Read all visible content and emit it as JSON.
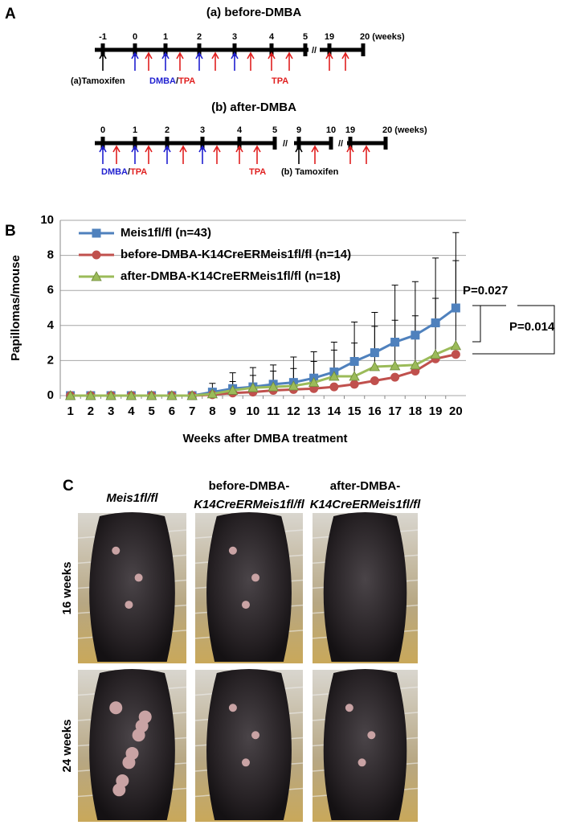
{
  "panel_a": {
    "label": "A",
    "before": {
      "title": "(a) before-DMBA",
      "ticks": [
        "-1",
        "0",
        "1",
        "2",
        "3",
        "4",
        "5",
        "19",
        "20 (weeks)"
      ],
      "tamoxifen": "(a)Tamoxifen",
      "dmba": "DMBA",
      "slash": "/",
      "tpa": "TPA",
      "tpa_late": "TPA"
    },
    "after": {
      "title": "(b) after-DMBA",
      "ticks": [
        "0",
        "1",
        "2",
        "3",
        "4",
        "5",
        "9",
        "10",
        "19",
        "20 (weeks)"
      ],
      "dmba": "DMBA",
      "slash": "/",
      "tpa": "TPA",
      "tpa_late": "TPA",
      "tamoxifen": "(b) Tamoxifen"
    }
  },
  "chart_data": {
    "type": "line",
    "panel_label": "B",
    "y_label": "Papillomas/mouse",
    "x_label": "Weeks after DMBA treatment",
    "categories": [
      "1",
      "2",
      "3",
      "4",
      "5",
      "6",
      "7",
      "8",
      "9",
      "10",
      "11",
      "12",
      "13",
      "14",
      "15",
      "16",
      "17",
      "18",
      "19",
      "20"
    ],
    "ylim": [
      0,
      10
    ],
    "yticks": [
      0,
      2,
      4,
      6,
      8,
      10
    ],
    "grid": true,
    "series": [
      {
        "name": "Meis1fl/fl (n=43)",
        "color": "#4f81bd",
        "marker": "square",
        "values": [
          0,
          0,
          0,
          0,
          0,
          0,
          0,
          0.2,
          0.4,
          0.5,
          0.65,
          0.75,
          1.0,
          1.35,
          1.95,
          2.45,
          3.05,
          3.45,
          4.15,
          5.0
        ],
        "errors": [
          null,
          null,
          null,
          null,
          null,
          null,
          null,
          0.5,
          0.9,
          1.1,
          1.1,
          1.45,
          1.5,
          1.7,
          2.25,
          2.3,
          3.25,
          3.05,
          3.7,
          4.3
        ]
      },
      {
        "name": "before-DMBA-K14CreERMeis1fl/fl (n=14)",
        "color": "#c0504d",
        "marker": "circle",
        "values": [
          0,
          0,
          0,
          0,
          0,
          0,
          0,
          0.05,
          0.15,
          0.2,
          0.3,
          0.35,
          0.4,
          0.5,
          0.65,
          0.85,
          1.05,
          1.4,
          2.1,
          2.35
        ]
      },
      {
        "name": "after-DMBA-K14CreERMeis1fl/fl (n=18)",
        "color": "#9bbb59",
        "marker": "triangle",
        "values": [
          0,
          0,
          0,
          0,
          0,
          0,
          0,
          0.1,
          0.3,
          0.45,
          0.5,
          0.55,
          0.75,
          1.1,
          1.1,
          1.65,
          1.7,
          1.75,
          2.35,
          2.85
        ],
        "errors": [
          null,
          null,
          null,
          null,
          null,
          null,
          null,
          0.3,
          0.5,
          0.7,
          0.9,
          1.0,
          1.2,
          1.5,
          1.9,
          2.3,
          2.6,
          2.8,
          3.2,
          4.85
        ]
      }
    ],
    "annotations": [
      "P=0.027",
      "P=0.014"
    ]
  },
  "panel_c": {
    "label": "C",
    "columns": [
      [
        "Meis1fl/fl"
      ],
      [
        "before-DMBA-",
        "K14CreERMeis1fl/fl"
      ],
      [
        "after-DMBA-",
        "K14CreERMeis1fl/fl"
      ]
    ],
    "rows": [
      "16 weeks",
      "24 weeks"
    ]
  }
}
